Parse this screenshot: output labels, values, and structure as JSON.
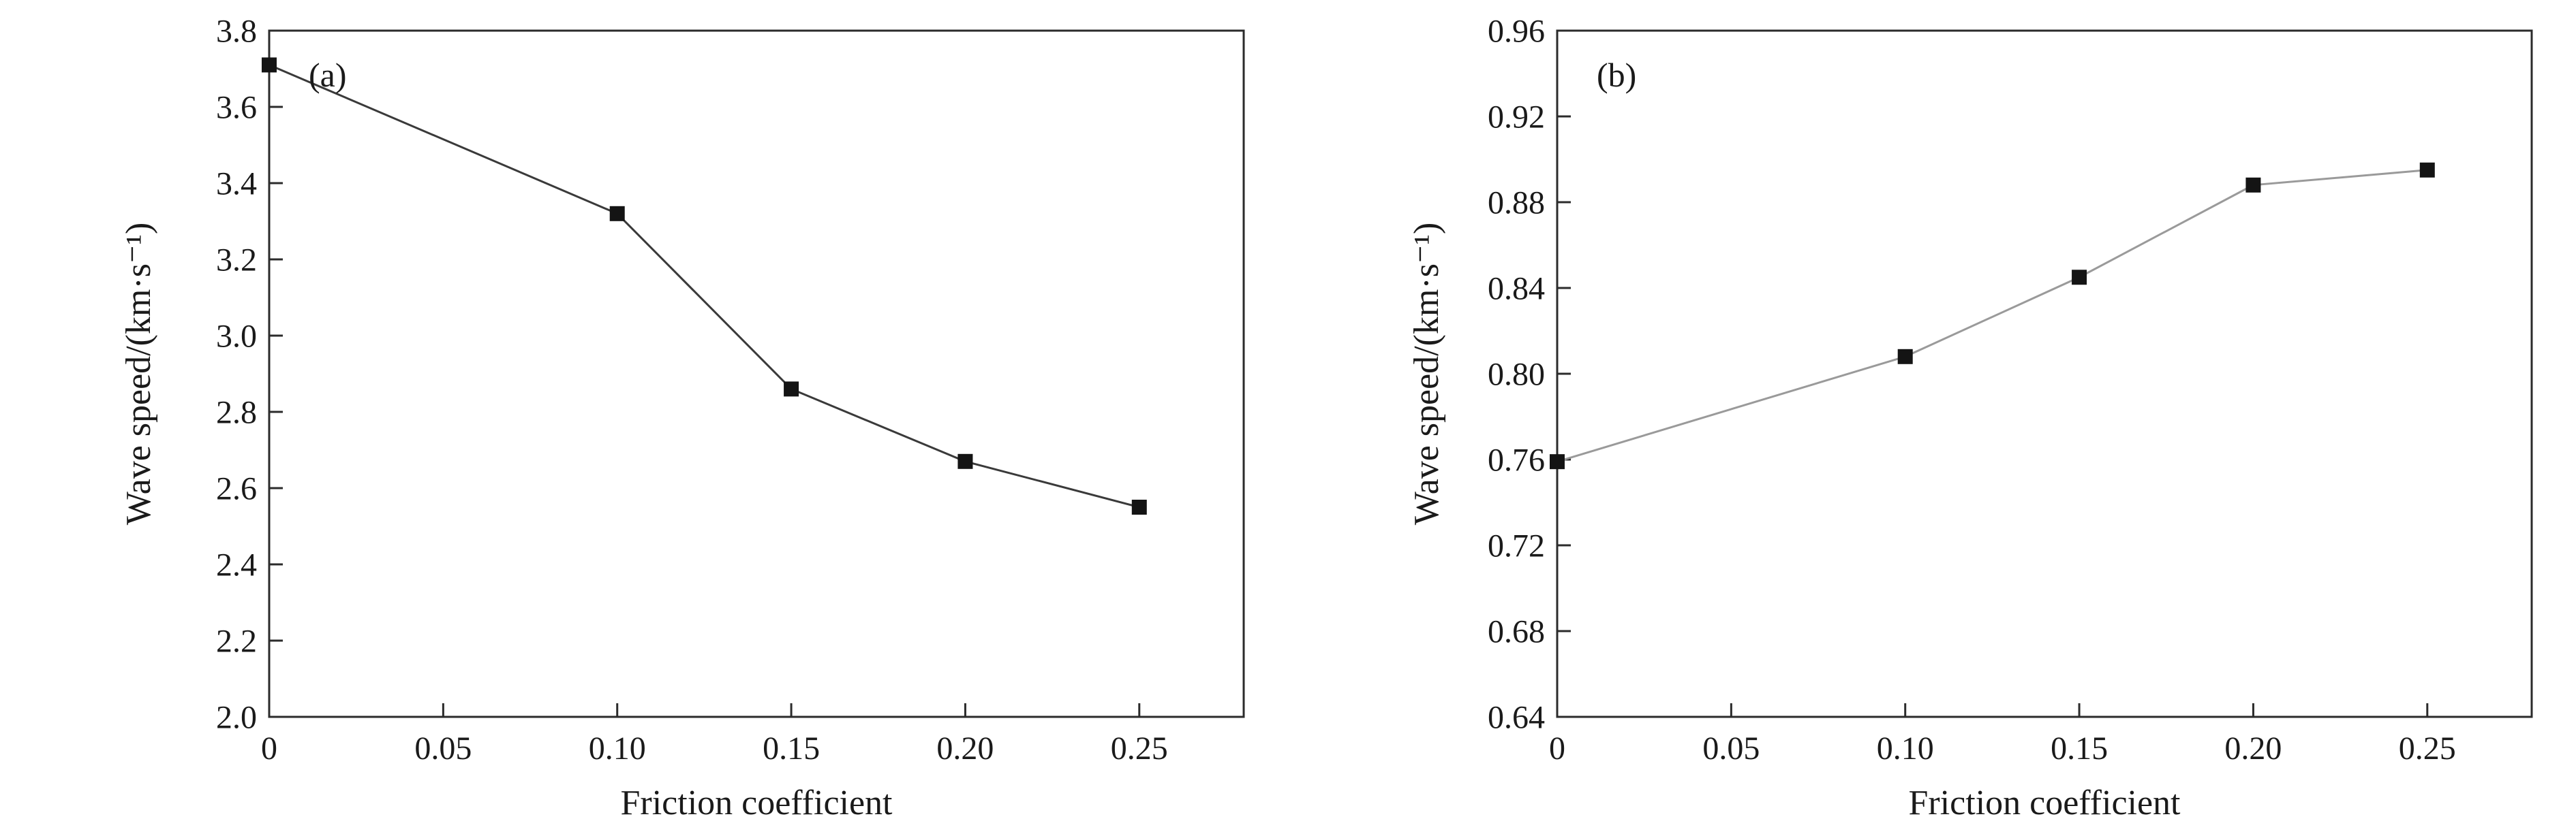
{
  "figure": {
    "background": "#ffffff",
    "axis_color": "#2b2b2b",
    "text_color": "#1a1a1a"
  },
  "chart_data": [
    {
      "type": "line",
      "panel_label": "(a)",
      "title": "",
      "xlabel": "Friction coefficient",
      "ylabel": "Wave speed/(km·s⁻¹)",
      "xlim": [
        0,
        0.28
      ],
      "ylim": [
        2.0,
        3.8
      ],
      "xtick_values": [
        0,
        0.05,
        0.1,
        0.15,
        0.2,
        0.25
      ],
      "xtick_labels": [
        "0",
        "0.05",
        "0.10",
        "0.15",
        "0.20",
        "0.25"
      ],
      "ytick_values": [
        2.0,
        2.2,
        2.4,
        2.6,
        2.8,
        3.0,
        3.2,
        3.4,
        3.6,
        3.8
      ],
      "ytick_labels": [
        "2.0",
        "2.2",
        "2.4",
        "2.6",
        "2.8",
        "3.0",
        "3.2",
        "3.4",
        "3.6",
        "3.8"
      ],
      "series": [
        {
          "name": "wave-speed",
          "x": [
            0,
            0.1,
            0.15,
            0.2,
            0.25
          ],
          "y": [
            3.71,
            3.32,
            2.86,
            2.67,
            2.55
          ],
          "line_color": "#3a3a3a",
          "marker": "square",
          "marker_color": "#141414"
        }
      ],
      "grid": false,
      "legend": "none"
    },
    {
      "type": "line",
      "panel_label": "(b)",
      "title": "",
      "xlabel": "Friction coefficient",
      "ylabel": "Wave speed/(km·s⁻¹)",
      "xlim": [
        0,
        0.28
      ],
      "ylim": [
        0.64,
        0.96
      ],
      "xtick_values": [
        0,
        0.05,
        0.1,
        0.15,
        0.2,
        0.25
      ],
      "xtick_labels": [
        "0",
        "0.05",
        "0.10",
        "0.15",
        "0.20",
        "0.25"
      ],
      "ytick_values": [
        0.64,
        0.68,
        0.72,
        0.76,
        0.8,
        0.84,
        0.88,
        0.92,
        0.96
      ],
      "ytick_labels": [
        "0.64",
        "0.68",
        "0.72",
        "0.76",
        "0.80",
        "0.84",
        "0.88",
        "0.92",
        "0.96"
      ],
      "series": [
        {
          "name": "wave-speed",
          "x": [
            0,
            0.1,
            0.15,
            0.2,
            0.25
          ],
          "y": [
            0.759,
            0.808,
            0.845,
            0.888,
            0.895
          ],
          "line_color": "#9a9a9a",
          "marker": "square",
          "marker_color": "#141414"
        }
      ],
      "grid": false,
      "legend": "none"
    }
  ]
}
